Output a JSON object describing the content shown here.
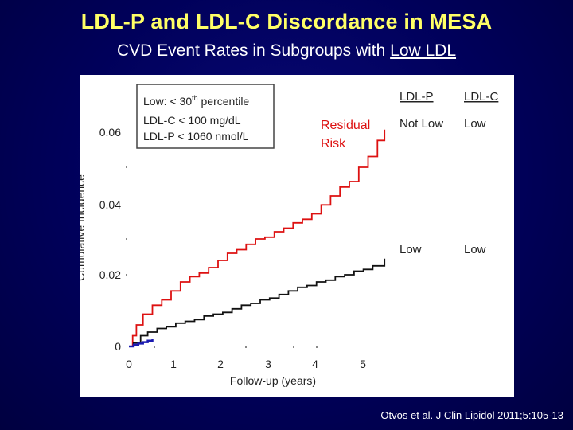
{
  "header": {
    "title": "LDL-P and LDL-C Discordance in MESA",
    "subtitle_prefix": "CVD Event Rates in Subgroups with ",
    "subtitle_emph": "Low LDL"
  },
  "citation": "Otvos et al. J Clin Lipidol 2011;5:105-13",
  "chart_data": {
    "type": "line",
    "title": "",
    "xlabel": "Follow-up (years)",
    "ylabel": "Cumulative Incidence",
    "xlim": [
      0,
      5.6
    ],
    "ylim": [
      0,
      0.066
    ],
    "x_ticks": [
      "0",
      "1",
      "2",
      "3",
      "4",
      "5"
    ],
    "y_ticks": [
      "0",
      "0.02",
      "0.04",
      "0.06"
    ],
    "legend_box": {
      "line1_prefix": "Low: < 30",
      "line1_sup": "th",
      "line1_suffix": " percentile",
      "line2": "LDL-C < 100 mg/dL",
      "line3": "LDL-P < 1060 nmol/L"
    },
    "column_headers": [
      "LDL-P",
      "LDL-C"
    ],
    "residual_label_1": "Residual",
    "residual_label_2": "Risk",
    "colors": {
      "red": "#dd1111",
      "black": "#111111",
      "blue": "#1a1ab0"
    },
    "series": [
      {
        "name": "Not Low LDL-P / Low LDL-C",
        "ldl_p": "Not Low",
        "ldl_c": "Low",
        "color": "#dd1111",
        "x": [
          0.0,
          0.08,
          0.16,
          0.3,
          0.5,
          0.7,
          0.9,
          1.1,
          1.3,
          1.5,
          1.7,
          1.9,
          2.1,
          2.3,
          2.5,
          2.7,
          2.9,
          3.1,
          3.3,
          3.5,
          3.7,
          3.9,
          4.1,
          4.3,
          4.5,
          4.7,
          4.9,
          5.1,
          5.3,
          5.45
        ],
        "y": [
          0.0,
          0.003,
          0.006,
          0.009,
          0.0115,
          0.013,
          0.0155,
          0.018,
          0.0195,
          0.0205,
          0.022,
          0.024,
          0.026,
          0.027,
          0.0285,
          0.03,
          0.0305,
          0.032,
          0.033,
          0.0345,
          0.0355,
          0.037,
          0.0395,
          0.042,
          0.0445,
          0.046,
          0.05,
          0.053,
          0.0575,
          0.0605
        ]
      },
      {
        "name": "Low LDL-P / Low LDL-C",
        "ldl_p": "Low",
        "ldl_c": "Low",
        "color": "#111111",
        "x": [
          0.0,
          0.1,
          0.25,
          0.4,
          0.6,
          0.8,
          1.0,
          1.2,
          1.4,
          1.6,
          1.8,
          2.0,
          2.2,
          2.4,
          2.6,
          2.8,
          3.0,
          3.2,
          3.4,
          3.6,
          3.8,
          4.0,
          4.2,
          4.4,
          4.6,
          4.8,
          5.0,
          5.2,
          5.45
        ],
        "y": [
          0.0,
          0.001,
          0.003,
          0.004,
          0.005,
          0.0055,
          0.0065,
          0.007,
          0.0075,
          0.0085,
          0.009,
          0.0095,
          0.0105,
          0.0115,
          0.012,
          0.013,
          0.0135,
          0.0145,
          0.0155,
          0.0165,
          0.017,
          0.018,
          0.0185,
          0.0195,
          0.02,
          0.021,
          0.0215,
          0.0225,
          0.0245
        ]
      },
      {
        "name": "Low (baseline segment)",
        "color": "#1a1ab0",
        "x": [
          0.0,
          0.1,
          0.2,
          0.3,
          0.4,
          0.5
        ],
        "y": [
          0.0,
          0.0005,
          0.0008,
          0.0012,
          0.0016,
          0.002
        ]
      }
    ]
  }
}
